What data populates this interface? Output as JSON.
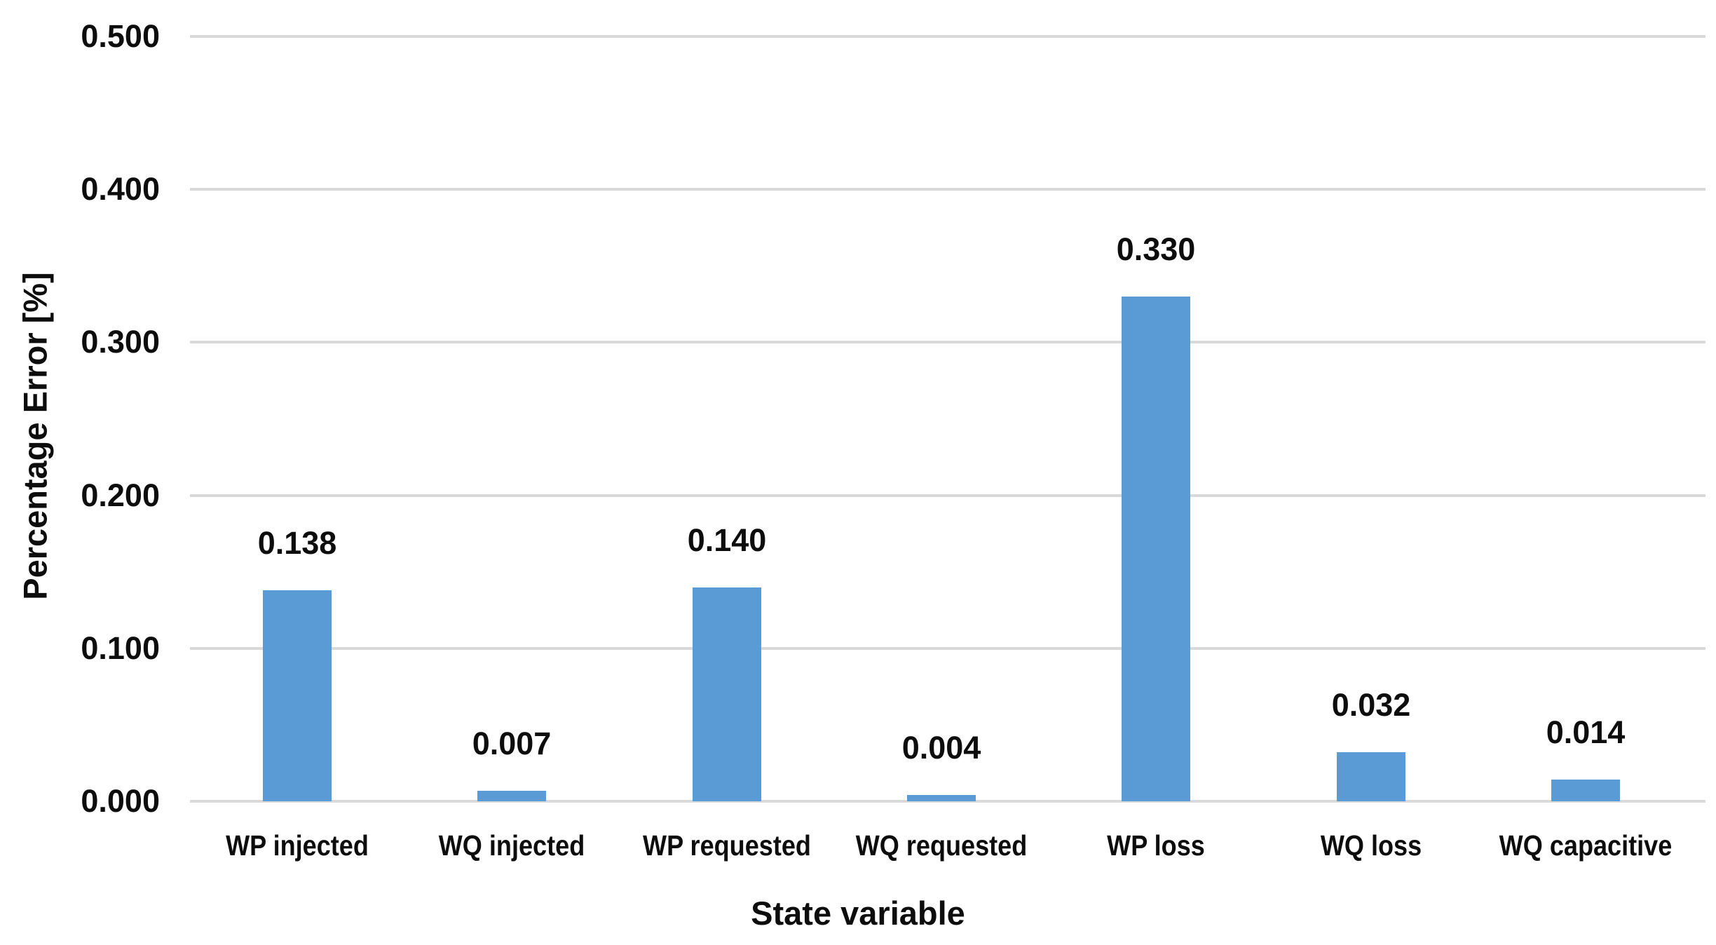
{
  "chart_data": {
    "type": "bar",
    "categories": [
      "WP injected",
      "WQ injected",
      "WP requested",
      "WQ requested",
      "WP loss",
      "WQ loss",
      "WQ capacitive"
    ],
    "values": [
      0.138,
      0.007,
      0.14,
      0.004,
      0.33,
      0.032,
      0.014
    ],
    "data_labels": [
      "0.138",
      "0.007",
      "0.140",
      "0.004",
      "0.330",
      "0.032",
      "0.014"
    ],
    "title": "",
    "xlabel": "State variable",
    "ylabel": "Percentage Error [%]",
    "ylim": [
      0,
      0.5
    ],
    "ytick_labels": [
      "0.000",
      "0.100",
      "0.200",
      "0.300",
      "0.400",
      "0.500"
    ],
    "grid": true,
    "legend": "none",
    "colors": {
      "bar_fill": "#5B9BD5",
      "gridline": "#D9D9D9",
      "text": "#0D0D0D"
    }
  }
}
